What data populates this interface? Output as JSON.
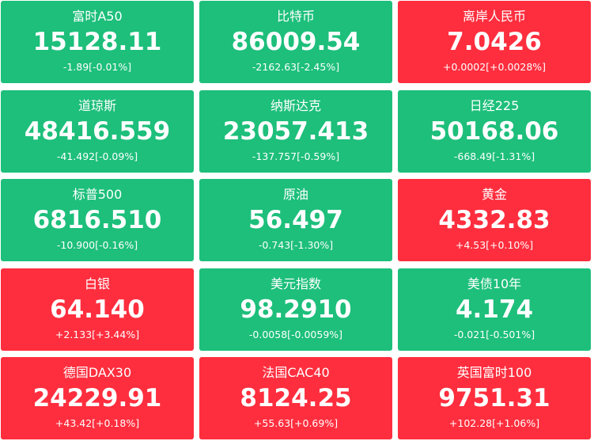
{
  "tiles": [
    {
      "name": "富时A50",
      "price": "15128.11",
      "change": "-1.89[-0.01%]",
      "color": "#1dbf7b"
    },
    {
      "name": "比特币",
      "price": "86009.54",
      "change": "-2162.63[-2.45%]",
      "color": "#1dbf7b"
    },
    {
      "name": "离岸人民币",
      "price": "7.0426",
      "change": "+0.0002[+0.0028%]",
      "color": "#fe2e3e"
    },
    {
      "name": "道琼斯",
      "price": "48416.559",
      "change": "-41.492[-0.09%]",
      "color": "#1dbf7b"
    },
    {
      "name": "纳斯达克",
      "price": "23057.413",
      "change": "-137.757[-0.59%]",
      "color": "#1dbf7b"
    },
    {
      "name": "日经225",
      "price": "50168.06",
      "change": "-668.49[-1.31%]",
      "color": "#1dbf7b"
    },
    {
      "name": "标普500",
      "price": "6816.510",
      "change": "-10.900[-0.16%]",
      "color": "#1dbf7b"
    },
    {
      "name": "原油",
      "price": "56.497",
      "change": "-0.743[-1.30%]",
      "color": "#1dbf7b"
    },
    {
      "name": "黄金",
      "price": "4332.83",
      "change": "+4.53[+0.10%]",
      "color": "#fe2e3e"
    },
    {
      "name": "白银",
      "price": "64.140",
      "change": "+2.133[+3.44%]",
      "color": "#fe2e3e"
    },
    {
      "name": "美元指数",
      "price": "98.2910",
      "change": "-0.0058[-0.0059%]",
      "color": "#1dbf7b"
    },
    {
      "name": "美债10年",
      "price": "4.174",
      "change": "-0.021[-0.501%]",
      "color": "#1dbf7b"
    },
    {
      "name": "德国DAX30",
      "price": "24229.91",
      "change": "+43.42[+0.18%]",
      "color": "#fe2e3e"
    },
    {
      "name": "法国CAC40",
      "price": "8124.25",
      "change": "+55.63[+0.69%]",
      "color": "#fe2e3e"
    },
    {
      "name": "英国富时100",
      "price": "9751.31",
      "change": "+102.28[+1.06%]",
      "color": "#fe2e3e"
    }
  ]
}
